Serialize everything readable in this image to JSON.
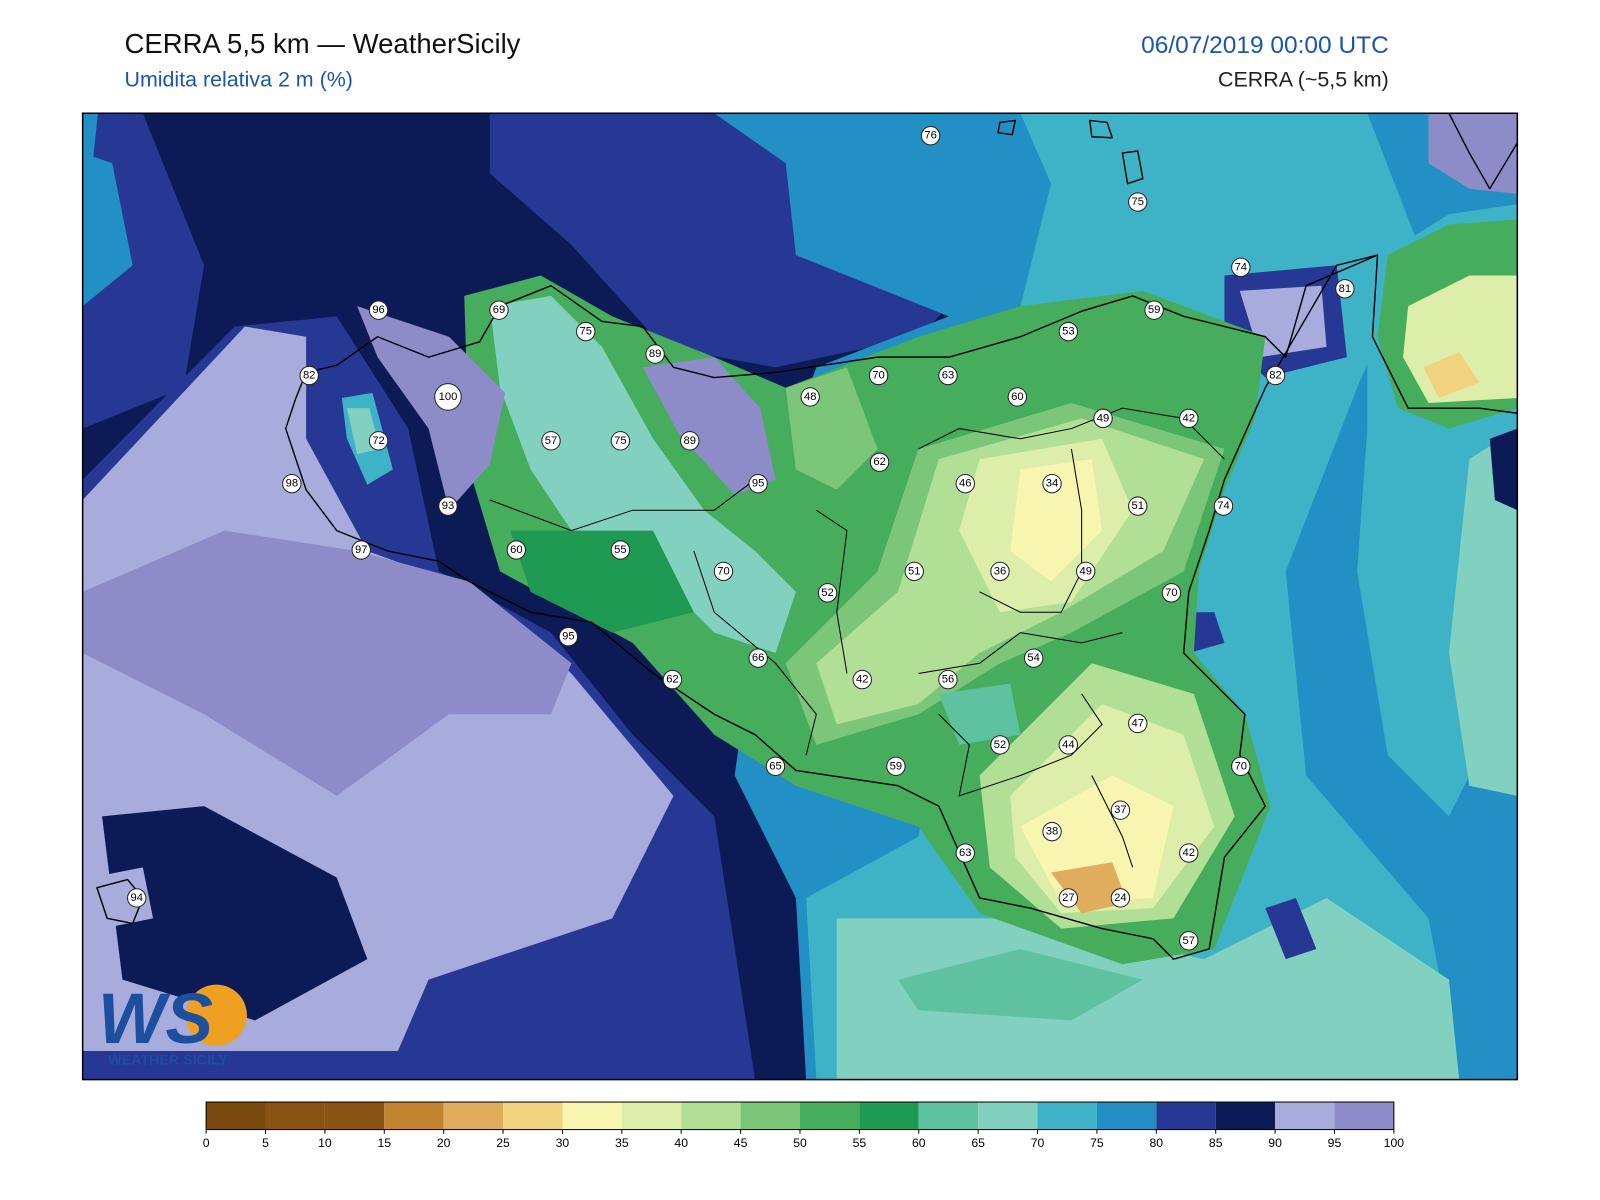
{
  "header": {
    "title": "CERRA 5,5 km — WeatherSicily",
    "subtitle": "Umidita relativa 2 m (%)",
    "datetime": "06/07/2019 00:00 UTC",
    "model": "CERRA (~5,5 km)"
  },
  "stations": [
    76,
    75,
    74,
    81,
    96,
    69,
    59,
    53,
    75,
    89,
    82,
    70,
    63,
    82,
    100,
    48,
    60,
    49,
    42,
    72,
    57,
    75,
    89,
    62,
    98,
    95,
    46,
    34,
    93,
    51,
    74,
    97,
    60,
    55,
    70,
    51,
    36,
    49,
    52,
    70,
    95,
    54,
    66,
    62,
    42,
    56,
    47,
    52,
    44,
    65,
    59,
    70,
    37,
    38,
    63,
    42,
    27,
    24,
    57,
    94
  ],
  "colorbar": {
    "ticks": [
      0,
      5,
      10,
      15,
      20,
      25,
      30,
      35,
      40,
      45,
      50,
      55,
      60,
      65,
      70,
      75,
      80,
      85,
      90,
      95,
      100
    ],
    "colors": [
      "#7a4a0f",
      "#8a5313",
      "#8a5313",
      "#c2842e",
      "#e0ad5c",
      "#f1d37f",
      "#f8f5b0",
      "#dceeaa",
      "#b0df95",
      "#7cc67a",
      "#46ad5d",
      "#1f9a52",
      "#5ec1a0",
      "#82d1c0",
      "#3eb3c8",
      "#2290c4",
      "#263894",
      "#0c1b55",
      "#a7acdc",
      "#8e8cc8"
    ]
  },
  "logo": {
    "mark": "WS",
    "name": "WEATHER SICILY"
  }
}
